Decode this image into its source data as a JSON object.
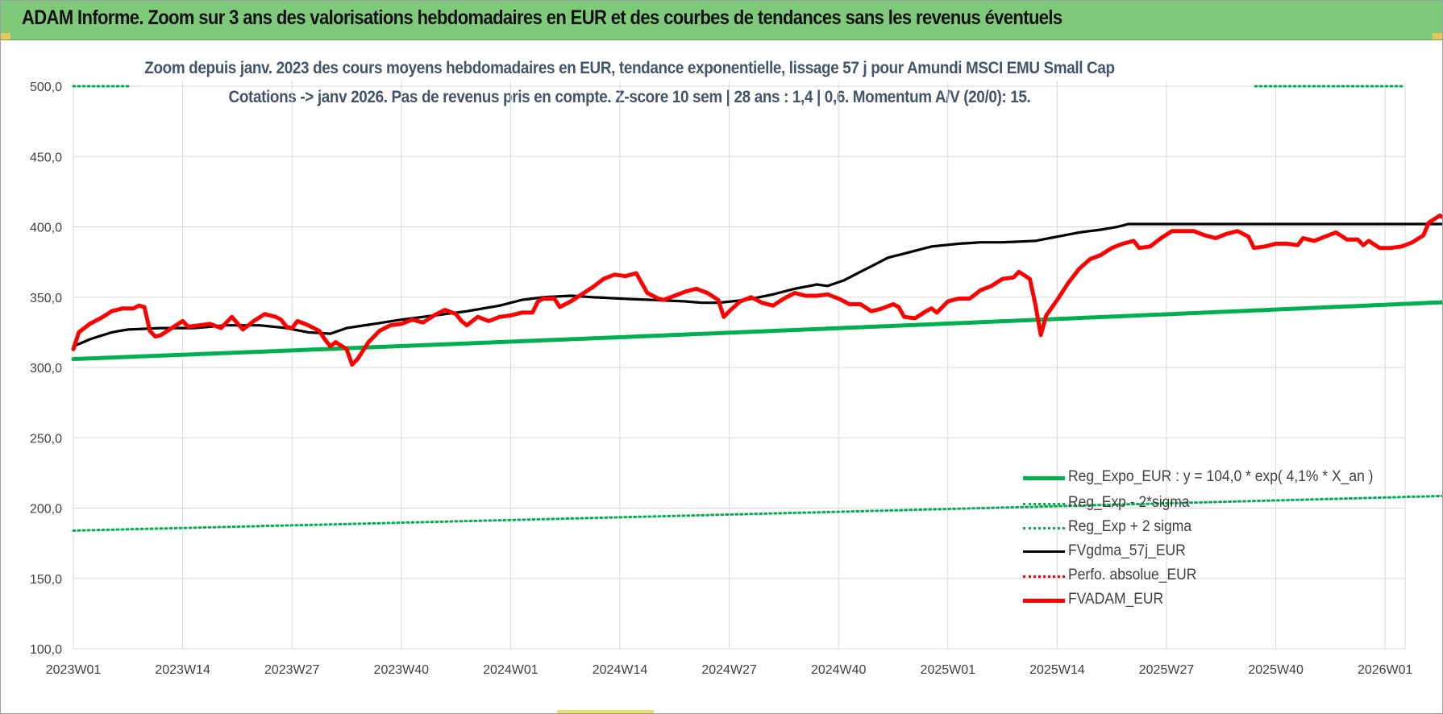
{
  "window": {
    "banner_title": "ADAM Informe. Zoom sur 3 ans des valorisations hebdomadaires en EUR et des courbes de tendances sans les revenus éventuels"
  },
  "colors": {
    "banner_bg": "#7fca7a",
    "trend_green": "#00b050",
    "price_red": "#ff0000",
    "gdma_black": "#000000",
    "subtitle_text": "#44546a",
    "grid": "#d9d9d9"
  },
  "chart_data": {
    "type": "line",
    "title_line1": "Zoom depuis janv. 2023 des cours moyens hebdomadaires en EUR, tendance exponentielle, lissage 57 j pour Amundi MSCI EMU Small Cap",
    "title_line2": "Cotations -> janv 2026. Pas de revenus pris en compte. Z-score 10 sem | 28 ans : 1,4 | 0,6. Momentum A/V (20/0): 15.",
    "xlabel": "",
    "ylabel": "",
    "ylim": [
      100,
      500
    ],
    "yticks": [
      "100,0",
      "150,0",
      "200,0",
      "250,0",
      "300,0",
      "350,0",
      "400,0",
      "450,0",
      "500,0"
    ],
    "ytick_values": [
      100,
      150,
      200,
      250,
      300,
      350,
      400,
      450,
      500
    ],
    "xticks": [
      "2023W01",
      "2023W14",
      "2023W27",
      "2023W40",
      "2024W01",
      "2024W14",
      "2024W27",
      "2024W40",
      "2025W01",
      "2025W14",
      "2025W27",
      "2025W40",
      "2026W01"
    ],
    "x_weeks": 163,
    "grid": true,
    "legend_position": "bottom-right",
    "series": [
      {
        "name": "Reg_Expo_EUR : y = 104,0 * exp( 4,1% *  X_an )",
        "style": "solid-thick",
        "color": "#00b050",
        "start": 306,
        "end": 347
      },
      {
        "name": "Reg_Exp - 2*sigma",
        "style": "dotted",
        "color": "#00b050",
        "start": 184,
        "end": 209
      },
      {
        "name": "Reg_Exp + 2 sigma",
        "style": "dotted",
        "color": "#00b050",
        "start": 500,
        "end": 500
      },
      {
        "name": "FVgdma_57j_EUR",
        "style": "solid",
        "color": "#000000",
        "knots": [
          [
            0,
            315
          ],
          [
            3,
            320
          ],
          [
            7,
            325
          ],
          [
            10,
            327
          ],
          [
            16,
            328
          ],
          [
            22,
            328
          ],
          [
            28,
            330
          ],
          [
            34,
            330
          ],
          [
            39,
            328
          ],
          [
            43,
            325
          ],
          [
            47,
            324
          ],
          [
            50,
            328
          ],
          [
            55,
            331
          ],
          [
            60,
            334
          ],
          [
            66,
            337
          ],
          [
            72,
            340
          ],
          [
            78,
            344
          ],
          [
            82,
            348
          ],
          [
            86,
            350
          ],
          [
            91,
            351
          ],
          [
            95,
            350
          ],
          [
            100,
            349
          ],
          [
            106,
            348
          ],
          [
            112,
            347
          ],
          [
            115,
            346
          ],
          [
            118,
            346
          ],
          [
            123,
            348
          ],
          [
            128,
            352
          ],
          [
            132,
            356
          ],
          [
            136,
            359
          ],
          [
            138,
            358
          ],
          [
            141,
            362
          ],
          [
            145,
            370
          ],
          [
            149,
            378
          ],
          [
            153,
            382
          ],
          [
            157,
            386
          ],
          [
            162,
            388
          ],
          [
            166,
            389
          ],
          [
            170,
            389
          ],
          [
            176,
            390
          ],
          [
            180,
            393
          ],
          [
            184,
            396
          ],
          [
            188,
            398
          ],
          [
            191,
            400
          ],
          [
            193,
            402
          ]
        ]
      },
      {
        "name": "Perfo. absolue_EUR",
        "style": "dotted",
        "color": "#ff0000",
        "values": []
      },
      {
        "name": "FVADAM_EUR",
        "style": "solid-thick",
        "color": "#ff0000",
        "knots": [
          [
            0,
            313
          ],
          [
            1,
            325
          ],
          [
            3,
            331
          ],
          [
            5,
            335
          ],
          [
            7,
            340
          ],
          [
            9,
            342
          ],
          [
            11,
            342
          ],
          [
            12,
            344
          ],
          [
            13,
            343
          ],
          [
            14,
            326
          ],
          [
            15,
            322
          ],
          [
            16,
            323
          ],
          [
            18,
            328
          ],
          [
            20,
            333
          ],
          [
            21,
            329
          ],
          [
            23,
            330
          ],
          [
            25,
            331
          ],
          [
            27,
            328
          ],
          [
            29,
            336
          ],
          [
            31,
            327
          ],
          [
            33,
            333
          ],
          [
            35,
            338
          ],
          [
            37,
            336
          ],
          [
            38,
            334
          ],
          [
            39,
            329
          ],
          [
            40,
            328
          ],
          [
            41,
            333
          ],
          [
            43,
            330
          ],
          [
            45,
            326
          ],
          [
            46,
            320
          ],
          [
            47,
            315
          ],
          [
            48,
            318
          ],
          [
            50,
            313
          ],
          [
            51,
            302
          ],
          [
            52,
            306
          ],
          [
            54,
            318
          ],
          [
            56,
            326
          ],
          [
            58,
            330
          ],
          [
            60,
            331
          ],
          [
            62,
            334
          ],
          [
            64,
            332
          ],
          [
            66,
            337
          ],
          [
            68,
            341
          ],
          [
            70,
            338
          ],
          [
            71,
            333
          ],
          [
            72,
            330
          ],
          [
            74,
            336
          ],
          [
            76,
            333
          ],
          [
            78,
            336
          ],
          [
            80,
            337
          ],
          [
            82,
            339
          ],
          [
            84,
            339
          ],
          [
            85,
            347
          ],
          [
            86,
            349
          ],
          [
            88,
            349
          ],
          [
            89,
            343
          ],
          [
            91,
            347
          ],
          [
            93,
            352
          ],
          [
            95,
            357
          ],
          [
            97,
            363
          ],
          [
            99,
            366
          ],
          [
            101,
            365
          ],
          [
            103,
            367
          ],
          [
            105,
            353
          ],
          [
            107,
            349
          ],
          [
            108,
            348
          ],
          [
            110,
            351
          ],
          [
            112,
            354
          ],
          [
            114,
            356
          ],
          [
            116,
            353
          ],
          [
            118,
            348
          ],
          [
            119,
            336
          ],
          [
            120,
            340
          ],
          [
            122,
            347
          ],
          [
            124,
            350
          ],
          [
            126,
            346
          ],
          [
            128,
            344
          ],
          [
            130,
            349
          ],
          [
            132,
            353
          ],
          [
            134,
            351
          ],
          [
            136,
            351
          ],
          [
            138,
            352
          ],
          [
            140,
            349
          ],
          [
            142,
            345
          ],
          [
            144,
            345
          ],
          [
            146,
            340
          ],
          [
            148,
            342
          ],
          [
            150,
            345
          ],
          [
            151,
            343
          ],
          [
            152,
            336
          ],
          [
            154,
            335
          ],
          [
            156,
            340
          ],
          [
            157,
            342
          ],
          [
            158,
            339
          ],
          [
            160,
            347
          ],
          [
            162,
            349
          ],
          [
            164,
            349
          ],
          [
            166,
            355
          ],
          [
            168,
            358
          ],
          [
            170,
            363
          ],
          [
            172,
            364
          ],
          [
            173,
            368
          ],
          [
            175,
            363
          ],
          [
            176,
            345
          ],
          [
            177,
            323
          ],
          [
            178,
            337
          ],
          [
            180,
            348
          ],
          [
            182,
            360
          ],
          [
            184,
            370
          ],
          [
            186,
            377
          ],
          [
            188,
            380
          ],
          [
            190,
            385
          ],
          [
            192,
            388
          ],
          [
            194,
            390
          ],
          [
            195,
            385
          ],
          [
            197,
            386
          ],
          [
            199,
            392
          ],
          [
            201,
            397
          ],
          [
            203,
            397
          ],
          [
            205,
            397
          ],
          [
            207,
            394
          ],
          [
            209,
            392
          ],
          [
            211,
            395
          ],
          [
            213,
            397
          ],
          [
            215,
            393
          ],
          [
            216,
            385
          ],
          [
            218,
            386
          ],
          [
            220,
            388
          ],
          [
            222,
            388
          ],
          [
            224,
            387
          ],
          [
            225,
            392
          ],
          [
            227,
            390
          ],
          [
            229,
            393
          ],
          [
            231,
            396
          ],
          [
            233,
            391
          ],
          [
            235,
            391
          ],
          [
            236,
            387
          ],
          [
            237,
            390
          ],
          [
            239,
            385
          ],
          [
            241,
            385
          ],
          [
            243,
            386
          ],
          [
            245,
            389
          ],
          [
            247,
            394
          ],
          [
            248,
            403
          ],
          [
            250,
            408
          ],
          [
            252,
            404
          ],
          [
            254,
            408
          ]
        ]
      }
    ]
  }
}
